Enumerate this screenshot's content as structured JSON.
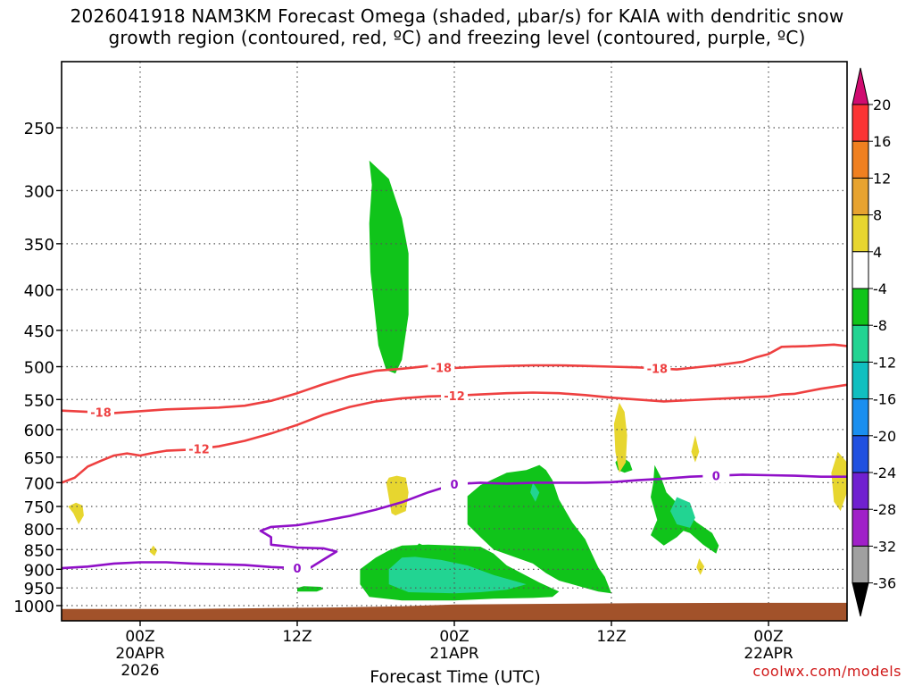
{
  "title": {
    "line1": "2026041918 NAM3KM Forecast Omega (shaded, μbar/s) for KAIA with dendritic snow",
    "line2": "growth region (contoured, red, ºC) and freezing level (contoured, purple, ºC)"
  },
  "credit": "coolwx.com/models",
  "chart_data": {
    "type": "contour",
    "title": "2026041918 NAM3KM Forecast Omega (shaded, μbar/s) for KAIA with dendritic snow growth region (contoured, red, ºC) and freezing level (contoured, purple, ºC)",
    "xlabel": "Forecast Time (UTC)",
    "x_ticks": [
      {
        "hour": 6,
        "lines": [
          "00Z",
          "20APR",
          "2026"
        ]
      },
      {
        "hour": 18,
        "lines": [
          "12Z"
        ]
      },
      {
        "hour": 30,
        "lines": [
          "00Z",
          "21APR"
        ]
      },
      {
        "hour": 42,
        "lines": [
          "12Z"
        ]
      },
      {
        "hour": 54,
        "lines": [
          "00Z",
          "22APR"
        ]
      }
    ],
    "xlim_hours": [
      0,
      60
    ],
    "y_axis": "pressure (mb), reversed log scale",
    "ylim": [
      1050,
      200
    ],
    "y_ticks": [
      250,
      300,
      350,
      400,
      450,
      500,
      550,
      600,
      650,
      700,
      750,
      800,
      850,
      900,
      950,
      1000
    ],
    "grid": true,
    "colorbar": {
      "levels": [
        20,
        16,
        12,
        8,
        4,
        -4,
        -8,
        -12,
        -16,
        -20,
        -24,
        -28,
        -32,
        -36
      ],
      "colors": [
        "#fb3434",
        "#f08020",
        "#e7a330",
        "#e7d62f",
        "#ffffff",
        "#10c41a",
        "#22d492",
        "#10bfc0",
        "#1a8ff0",
        "#2050e0",
        "#7020d0",
        "#a020c8",
        "#a0a0a0"
      ],
      "top_triangle": "#d00c70",
      "bottom_triangle": "#000000"
    },
    "contours": [
      {
        "name": "dendritic -18",
        "color": "#ee4040",
        "label": "-18",
        "points": [
          [
            0,
            568
          ],
          [
            4,
            572
          ],
          [
            8,
            566
          ],
          [
            12,
            563
          ],
          [
            14,
            560
          ],
          [
            16,
            552
          ],
          [
            18,
            540
          ],
          [
            20,
            526
          ],
          [
            22,
            514
          ],
          [
            24,
            506
          ],
          [
            26,
            503
          ],
          [
            27,
            501
          ],
          [
            28,
            499
          ],
          [
            29,
            501
          ],
          [
            30,
            502
          ],
          [
            32,
            500
          ],
          [
            34,
            499
          ],
          [
            36,
            498
          ],
          [
            38,
            498
          ],
          [
            40,
            499
          ],
          [
            42,
            500
          ],
          [
            44,
            501
          ],
          [
            45,
            502
          ],
          [
            46,
            503
          ],
          [
            47,
            504
          ],
          [
            48,
            502
          ],
          [
            50,
            498
          ],
          [
            52,
            493
          ],
          [
            53,
            487
          ],
          [
            54,
            482
          ],
          [
            55,
            472
          ],
          [
            57,
            471
          ],
          [
            59,
            469
          ],
          [
            60,
            471
          ]
        ],
        "labels_at": [
          3,
          29,
          45.5
        ]
      },
      {
        "name": "dendritic -12",
        "color": "#ee4040",
        "label": "-12",
        "points": [
          [
            0,
            700
          ],
          [
            1,
            690
          ],
          [
            2,
            668
          ],
          [
            3,
            657
          ],
          [
            4,
            647
          ],
          [
            5,
            643
          ],
          [
            6,
            647
          ],
          [
            7,
            642
          ],
          [
            8,
            638
          ],
          [
            10,
            636
          ],
          [
            12,
            630
          ],
          [
            14,
            620
          ],
          [
            16,
            607
          ],
          [
            18,
            592
          ],
          [
            20,
            575
          ],
          [
            22,
            562
          ],
          [
            24,
            553
          ],
          [
            26,
            548
          ],
          [
            28,
            545
          ],
          [
            30,
            544
          ],
          [
            32,
            542
          ],
          [
            34,
            540
          ],
          [
            36,
            539
          ],
          [
            38,
            540
          ],
          [
            40,
            543
          ],
          [
            42,
            547
          ],
          [
            44,
            550
          ],
          [
            46,
            553
          ],
          [
            48,
            551
          ],
          [
            50,
            549
          ],
          [
            52,
            547
          ],
          [
            54,
            545
          ],
          [
            55,
            542
          ],
          [
            56,
            541
          ],
          [
            58,
            533
          ],
          [
            60,
            527
          ]
        ],
        "labels_at": [
          30,
          10.5
        ]
      },
      {
        "name": "freezing level 0",
        "color": "#9010c8",
        "label": "0",
        "points": [
          [
            0,
            897
          ],
          [
            2,
            893
          ],
          [
            4,
            885
          ],
          [
            6,
            882
          ],
          [
            8,
            882
          ],
          [
            10,
            885
          ],
          [
            12,
            887
          ],
          [
            14,
            889
          ],
          [
            16,
            894
          ],
          [
            18,
            897
          ],
          [
            19,
            896
          ],
          [
            20,
            875
          ],
          [
            21,
            855
          ],
          [
            20,
            847
          ],
          [
            18,
            845
          ],
          [
            16,
            838
          ],
          [
            16,
            820
          ],
          [
            15.2,
            805
          ],
          [
            16,
            796
          ],
          [
            18,
            792
          ],
          [
            20,
            782
          ],
          [
            22,
            771
          ],
          [
            24,
            757
          ],
          [
            26,
            741
          ],
          [
            28,
            720
          ],
          [
            30,
            703
          ],
          [
            32,
            700
          ],
          [
            34,
            702
          ],
          [
            36,
            700
          ],
          [
            38,
            700
          ],
          [
            40,
            700
          ],
          [
            42,
            699
          ],
          [
            44,
            695
          ],
          [
            46,
            692
          ],
          [
            48,
            688
          ],
          [
            50,
            686
          ],
          [
            52,
            684
          ],
          [
            54,
            685
          ],
          [
            56,
            686
          ],
          [
            58,
            688
          ],
          [
            60,
            688
          ]
        ],
        "labels_at": [
          18,
          30,
          50
        ]
      }
    ],
    "shaded_regions": [
      {
        "level": "-8",
        "color": "#10c41a",
        "description": "upper column",
        "points": [
          [
            23.5,
            275
          ],
          [
            25,
            290
          ],
          [
            26,
            325
          ],
          [
            26.5,
            360
          ],
          [
            26.5,
            430
          ],
          [
            26.0,
            490
          ],
          [
            25.5,
            510
          ],
          [
            24.8,
            505
          ],
          [
            24.2,
            470
          ],
          [
            23.6,
            380
          ],
          [
            23.5,
            330
          ],
          [
            23.7,
            295
          ]
        ]
      },
      {
        "level": "-8",
        "color": "#10c41a",
        "description": "lower mass",
        "points": [
          [
            26,
            840
          ],
          [
            25,
            852
          ],
          [
            24,
            870
          ],
          [
            22.8,
            900
          ],
          [
            22.8,
            940
          ],
          [
            23.5,
            975
          ],
          [
            26,
            985
          ],
          [
            30,
            985
          ],
          [
            33,
            980
          ],
          [
            36,
            978
          ],
          [
            37.5,
            975
          ],
          [
            38,
            960
          ],
          [
            36.5,
            935
          ],
          [
            34,
            890
          ],
          [
            33,
            860
          ],
          [
            32,
            843
          ],
          [
            30,
            840
          ],
          [
            28,
            838
          ]
        ]
      },
      {
        "level": "-8",
        "color": "#10c41a",
        "description": "rising column",
        "points": [
          [
            32,
            705
          ],
          [
            31,
            728
          ],
          [
            31,
            790
          ],
          [
            32,
            820
          ],
          [
            33,
            850
          ],
          [
            36,
            885
          ],
          [
            37,
            910
          ],
          [
            38,
            930
          ],
          [
            40,
            950
          ],
          [
            41,
            960
          ],
          [
            42,
            965
          ],
          [
            41.5,
            920
          ],
          [
            41,
            895
          ],
          [
            40.5,
            860
          ],
          [
            40,
            825
          ],
          [
            39,
            785
          ],
          [
            38,
            735
          ],
          [
            37.5,
            695
          ],
          [
            37,
            675
          ],
          [
            36.5,
            665
          ],
          [
            35.5,
            675
          ],
          [
            34,
            680
          ]
        ]
      },
      {
        "level": "-8",
        "color": "#10c41a",
        "description": "right blob",
        "points": [
          [
            45.3,
            665
          ],
          [
            45.2,
            700
          ],
          [
            45,
            730
          ],
          [
            45.5,
            780
          ],
          [
            45,
            815
          ],
          [
            46,
            840
          ],
          [
            47,
            820
          ],
          [
            47.5,
            805
          ],
          [
            48,
            810
          ],
          [
            49,
            838
          ],
          [
            50,
            860
          ],
          [
            50.2,
            840
          ],
          [
            49.7,
            810
          ],
          [
            48.5,
            785
          ],
          [
            47.5,
            757
          ],
          [
            46.2,
            720
          ],
          [
            45.8,
            690
          ]
        ]
      },
      {
        "level": "-8",
        "color": "#10c41a",
        "description": "small blob 650",
        "points": [
          [
            42.7,
            647
          ],
          [
            42.3,
            660
          ],
          [
            42.5,
            675
          ],
          [
            43,
            680
          ],
          [
            43.6,
            675
          ],
          [
            43.4,
            660
          ]
        ]
      },
      {
        "level": "-8",
        "color": "#10c41a",
        "description": "small blob 950",
        "points": [
          [
            18.5,
            945
          ],
          [
            18,
            950
          ],
          [
            18,
            960
          ],
          [
            19.5,
            960
          ],
          [
            20,
            953
          ],
          [
            19.8,
            947
          ]
        ]
      },
      {
        "level": "-8",
        "color": "#10c41a",
        "description": "small blob 840",
        "points": [
          [
            27.3,
            835
          ],
          [
            27.1,
            842
          ],
          [
            27.4,
            848
          ],
          [
            27.8,
            842
          ]
        ]
      },
      {
        "level": "-12",
        "color": "#22d492",
        "description": "core low",
        "points": [
          [
            26,
            870
          ],
          [
            25,
            900
          ],
          [
            25,
            940
          ],
          [
            26.5,
            962
          ],
          [
            30,
            965
          ],
          [
            32,
            962
          ],
          [
            34,
            955
          ],
          [
            35.5,
            940
          ],
          [
            33,
            915
          ],
          [
            31,
            890
          ],
          [
            29,
            876
          ],
          [
            27,
            868
          ]
        ]
      },
      {
        "level": "-12",
        "color": "#22d492",
        "description": "core right",
        "points": [
          [
            47,
            730
          ],
          [
            46.5,
            760
          ],
          [
            47,
            790
          ],
          [
            48,
            798
          ],
          [
            48.4,
            775
          ],
          [
            48,
            742
          ]
        ]
      },
      {
        "level": "-12",
        "color": "#22d492",
        "description": "core small",
        "points": [
          [
            36,
            700
          ],
          [
            35.8,
            720
          ],
          [
            36.2,
            740
          ],
          [
            36.5,
            720
          ]
        ]
      },
      {
        "level": "4",
        "color": "#e7d62f",
        "description": "left small",
        "points": [
          [
            0.5,
            750
          ],
          [
            0.9,
            765
          ],
          [
            1.3,
            790
          ],
          [
            1.7,
            770
          ],
          [
            1.6,
            748
          ],
          [
            1.1,
            742
          ]
        ]
      },
      {
        "level": "4",
        "color": "#e7d62f",
        "description": "tiny 850",
        "points": [
          [
            7.0,
            840
          ],
          [
            6.7,
            855
          ],
          [
            7.1,
            866
          ],
          [
            7.3,
            852
          ]
        ]
      },
      {
        "level": "4",
        "color": "#e7d62f",
        "description": "mid yellow",
        "points": [
          [
            25.0,
            690
          ],
          [
            24.8,
            700
          ],
          [
            25.2,
            765
          ],
          [
            25.5,
            770
          ],
          [
            26.3,
            760
          ],
          [
            26.5,
            720
          ],
          [
            26.3,
            690
          ],
          [
            25.6,
            686
          ]
        ]
      },
      {
        "level": "4",
        "color": "#e7d62f",
        "description": "yellow 600",
        "points": [
          [
            42.6,
            555
          ],
          [
            42.2,
            590
          ],
          [
            42.3,
            640
          ],
          [
            42.6,
            680
          ],
          [
            43.1,
            660
          ],
          [
            43.2,
            610
          ],
          [
            43.0,
            570
          ]
        ]
      },
      {
        "level": "4",
        "color": "#e7d62f",
        "description": "yellow 640",
        "points": [
          [
            48.4,
            610
          ],
          [
            48.1,
            640
          ],
          [
            48.4,
            660
          ],
          [
            48.7,
            640
          ]
        ]
      },
      {
        "level": "4",
        "color": "#e7d62f",
        "description": "yellow 880",
        "points": [
          [
            48.7,
            872
          ],
          [
            48.5,
            895
          ],
          [
            48.8,
            915
          ],
          [
            49.1,
            893
          ]
        ]
      },
      {
        "level": "4",
        "color": "#e7d62f",
        "description": "right edge",
        "points": [
          [
            59.3,
            640
          ],
          [
            58.8,
            680
          ],
          [
            59,
            740
          ],
          [
            59.5,
            760
          ],
          [
            60,
            720
          ],
          [
            60,
            660
          ]
        ]
      }
    ],
    "terrain": {
      "color": "#a2522a",
      "description": "ground surface near 1000 mb"
    }
  }
}
